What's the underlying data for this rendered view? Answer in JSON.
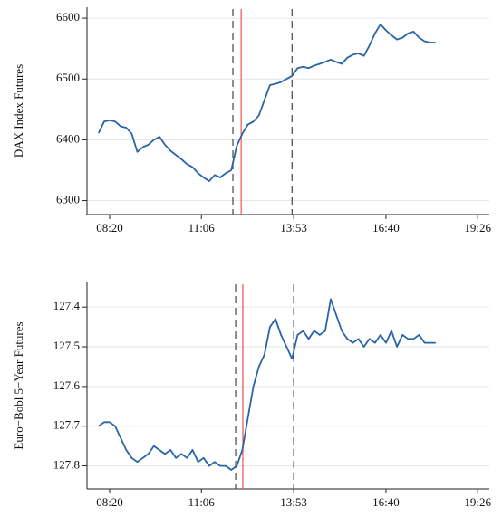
{
  "chart_data": [
    {
      "type": "line",
      "ylabel": "DAX Index Futures",
      "color": "#2a64a8",
      "x": [
        480,
        490,
        500,
        510,
        520,
        530,
        540,
        550,
        560,
        570,
        580,
        590,
        600,
        610,
        620,
        630,
        640,
        650,
        660,
        670,
        680,
        690,
        700,
        710,
        720,
        730,
        740,
        750,
        760,
        770,
        780,
        790,
        800,
        810,
        820,
        830,
        840,
        850,
        860,
        870,
        880,
        890,
        900,
        910,
        920,
        930,
        940,
        950,
        960,
        970,
        980,
        990,
        1000,
        1010,
        1020,
        1030,
        1040,
        1050,
        1060,
        1070,
        1080,
        1090
      ],
      "values": [
        6411,
        6430,
        6432,
        6430,
        6422,
        6420,
        6410,
        6380,
        6388,
        6392,
        6400,
        6405,
        6392,
        6382,
        6375,
        6368,
        6360,
        6355,
        6345,
        6338,
        6332,
        6342,
        6338,
        6345,
        6350,
        6390,
        6410,
        6425,
        6430,
        6440,
        6465,
        6490,
        6492,
        6495,
        6500,
        6505,
        6518,
        6520,
        6518,
        6522,
        6525,
        6528,
        6532,
        6528,
        6525,
        6535,
        6540,
        6542,
        6538,
        6555,
        6575,
        6590,
        6580,
        6572,
        6565,
        6568,
        6575,
        6578,
        6568,
        6562,
        6560,
        6560
      ],
      "xlim": [
        459,
        1187
      ],
      "xticks": [
        {
          "value": 500,
          "label": "08:20"
        },
        {
          "value": 666,
          "label": "11:06"
        },
        {
          "value": 833,
          "label": "13:53"
        },
        {
          "value": 1000,
          "label": "16:40"
        },
        {
          "value": 1166,
          "label": "19:26"
        }
      ],
      "ylim": [
        6277,
        6618
      ],
      "yticks": [
        6300,
        6400,
        6500,
        6600
      ],
      "grid": true,
      "vlines": [
        {
          "x": 723,
          "color": "#444444",
          "dashed": true
        },
        {
          "x": 738,
          "color": "#f05050",
          "dashed": false
        },
        {
          "x": 830,
          "color": "#444444",
          "dashed": true
        }
      ]
    },
    {
      "type": "line",
      "ylabel": "Euro−Bobl 5−Year Futures",
      "color": "#2a64a8",
      "x": [
        480,
        490,
        500,
        510,
        520,
        530,
        540,
        550,
        560,
        570,
        580,
        590,
        600,
        610,
        620,
        630,
        640,
        650,
        660,
        670,
        680,
        690,
        700,
        710,
        720,
        730,
        740,
        750,
        760,
        770,
        780,
        790,
        800,
        810,
        820,
        830,
        840,
        850,
        860,
        870,
        880,
        890,
        900,
        910,
        920,
        930,
        940,
        950,
        960,
        970,
        980,
        990,
        1000,
        1010,
        1020,
        1030,
        1040,
        1050,
        1060,
        1070,
        1080,
        1090
      ],
      "values": [
        127.7,
        127.69,
        127.69,
        127.7,
        127.73,
        127.76,
        127.78,
        127.79,
        127.78,
        127.77,
        127.75,
        127.76,
        127.77,
        127.76,
        127.78,
        127.77,
        127.78,
        127.76,
        127.79,
        127.78,
        127.8,
        127.79,
        127.8,
        127.8,
        127.81,
        127.8,
        127.76,
        127.68,
        127.6,
        127.55,
        127.52,
        127.45,
        127.43,
        127.47,
        127.5,
        127.53,
        127.47,
        127.46,
        127.48,
        127.46,
        127.47,
        127.46,
        127.38,
        127.42,
        127.46,
        127.48,
        127.49,
        127.48,
        127.5,
        127.48,
        127.49,
        127.47,
        127.49,
        127.46,
        127.5,
        127.47,
        127.48,
        127.48,
        127.47,
        127.49,
        127.49,
        127.49
      ],
      "xlim": [
        459,
        1187
      ],
      "xticks": [
        {
          "value": 500,
          "label": "08:20"
        },
        {
          "value": 666,
          "label": "11:06"
        },
        {
          "value": 833,
          "label": "13:53"
        },
        {
          "value": 1000,
          "label": "16:40"
        },
        {
          "value": 1166,
          "label": "19:26"
        }
      ],
      "ylim": [
        127.858,
        127.338
      ],
      "yticks": [
        127.4,
        127.5,
        127.6,
        127.7,
        127.8
      ],
      "grid": true,
      "vlines": [
        {
          "x": 728,
          "color": "#444444",
          "dashed": true
        },
        {
          "x": 741,
          "color": "#f05050",
          "dashed": false
        },
        {
          "x": 833,
          "color": "#444444",
          "dashed": true
        }
      ]
    }
  ]
}
